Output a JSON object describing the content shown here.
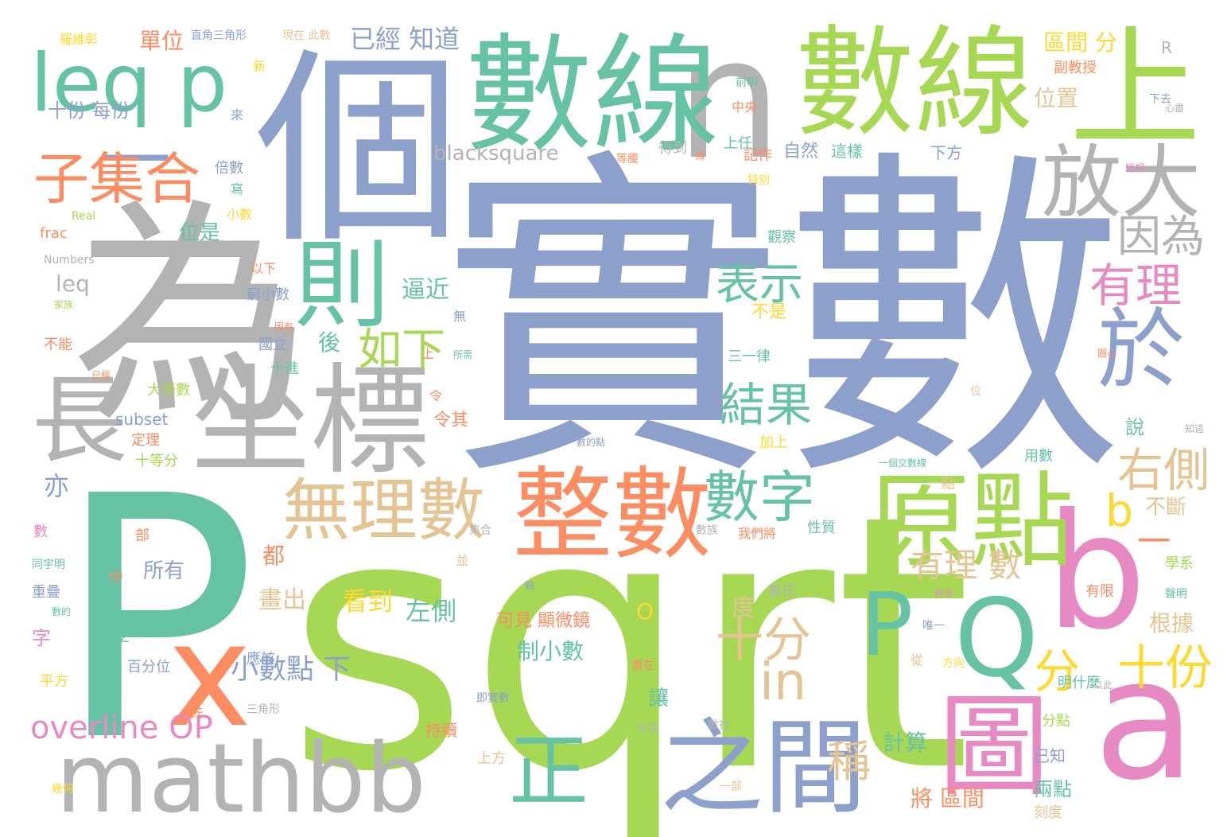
{
  "palette": {
    "blue": "#8da0cb",
    "green": "#66c2a5",
    "lime": "#a6d854",
    "orange": "#fc8d62",
    "pink": "#e78ac3",
    "tan": "#e5c494",
    "gray": "#b3b3b3",
    "yellow": "#ffd92f"
  },
  "words": [
    {
      "text": "實數",
      "color": "blue"
    },
    {
      "text": "sqrt",
      "color": "lime"
    },
    {
      "text": "P",
      "color": "green"
    },
    {
      "text": "為",
      "color": "gray"
    },
    {
      "text": "個",
      "color": "blue"
    },
    {
      "text": "一",
      "color": "blue"
    },
    {
      "text": "n",
      "color": "gray"
    },
    {
      "text": "數線",
      "color": "green"
    },
    {
      "text": "數線",
      "color": "lime"
    },
    {
      "text": "上",
      "color": "lime"
    },
    {
      "text": "x",
      "color": "orange"
    },
    {
      "text": "b",
      "color": "pink"
    },
    {
      "text": "a",
      "color": "pink"
    },
    {
      "text": "坐標",
      "color": "gray"
    },
    {
      "text": "長",
      "color": "gray"
    },
    {
      "text": "mathbb",
      "color": "gray"
    },
    {
      "text": "leq p",
      "color": "green"
    },
    {
      "text": "原點",
      "color": "lime"
    },
    {
      "text": "整數",
      "color": "orange"
    },
    {
      "text": "放大",
      "color": "gray"
    },
    {
      "text": "則",
      "color": "green"
    },
    {
      "text": "於",
      "color": "blue"
    },
    {
      "text": "P",
      "color": "green"
    },
    {
      "text": "Q",
      "color": "green"
    },
    {
      "text": "圖",
      "color": "pink"
    },
    {
      "text": "之間",
      "color": "blue"
    },
    {
      "text": "正",
      "color": "green"
    },
    {
      "text": "無理數",
      "color": "tan"
    },
    {
      "text": "子集合",
      "color": "orange"
    },
    {
      "text": "數字",
      "color": "green"
    },
    {
      "text": "因為",
      "color": "gray"
    },
    {
      "text": "有理",
      "color": "pink"
    },
    {
      "text": "表示",
      "color": "green"
    },
    {
      "text": "如下",
      "color": "lime"
    },
    {
      "text": "結果",
      "color": "green"
    },
    {
      "text": "右側",
      "color": "tan"
    },
    {
      "text": "b",
      "color": "yellow"
    },
    {
      "text": "in",
      "color": "tan"
    },
    {
      "text": "十分",
      "color": "tan"
    },
    {
      "text": "十份",
      "color": "yellow"
    },
    {
      "text": "分",
      "color": "yellow"
    },
    {
      "text": "有理 數",
      "color": "tan"
    },
    {
      "text": "overline OP",
      "color": "pink"
    },
    {
      "text": "稱",
      "color": "tan"
    },
    {
      "text": "小數點 下",
      "color": "blue"
    },
    {
      "text": "blacksquare",
      "color": "gray"
    },
    {
      "text": "十份 每份",
      "color": "blue"
    },
    {
      "text": "單位",
      "color": "orange"
    },
    {
      "text": "已經 知道",
      "color": "blue"
    },
    {
      "text": "區間 分",
      "color": "yellow"
    },
    {
      "text": "位置",
      "color": "tan"
    },
    {
      "text": "逼近",
      "color": "green"
    },
    {
      "text": "位是",
      "color": "green"
    },
    {
      "text": "leq",
      "color": "gray"
    },
    {
      "text": "看到",
      "color": "yellow"
    },
    {
      "text": "左側",
      "color": "green"
    },
    {
      "text": "制小數",
      "color": "green"
    },
    {
      "text": "計算",
      "color": "green"
    },
    {
      "text": "將 區間",
      "color": "orange"
    },
    {
      "text": "兩點",
      "color": "green"
    },
    {
      "text": "所有",
      "color": "blue"
    },
    {
      "text": "畫出",
      "color": "tan"
    },
    {
      "text": "根據",
      "color": "tan"
    },
    {
      "text": "不斷",
      "color": "tan"
    },
    {
      "text": "一",
      "color": "orange"
    },
    {
      "text": "度",
      "color": "tan"
    },
    {
      "text": "O",
      "color": "yellow"
    },
    {
      "text": "亦",
      "color": "blue"
    },
    {
      "text": "後",
      "color": "green"
    },
    {
      "text": "都",
      "color": "orange"
    },
    {
      "text": "說",
      "color": "green"
    },
    {
      "text": "讓",
      "color": "green"
    },
    {
      "text": "字",
      "color": "pink"
    },
    {
      "text": "frac",
      "color": "orange"
    },
    {
      "text": "subset",
      "color": "blue"
    },
    {
      "text": "大學數",
      "color": "lime"
    },
    {
      "text": "十等分",
      "color": "lime"
    },
    {
      "text": "定理",
      "color": "orange"
    },
    {
      "text": "不能",
      "color": "orange"
    },
    {
      "text": "不是",
      "color": "yellow"
    },
    {
      "text": "三一律",
      "color": "green"
    },
    {
      "text": "加上",
      "color": "yellow"
    },
    {
      "text": "令其",
      "color": "orange"
    },
    {
      "text": "國立",
      "color": "blue"
    },
    {
      "text": "十進",
      "color": "green"
    },
    {
      "text": "窮小數",
      "color": "blue"
    },
    {
      "text": "以下",
      "color": "orange"
    },
    {
      "text": "小數",
      "color": "yellow"
    },
    {
      "text": "倍數",
      "color": "blue"
    },
    {
      "text": "自然",
      "color": "blue"
    },
    {
      "text": "得到",
      "color": "gray"
    },
    {
      "text": "上任",
      "color": "green"
    },
    {
      "text": "記作",
      "color": "orange"
    },
    {
      "text": "這樣",
      "color": "green"
    },
    {
      "text": "下方",
      "color": "blue"
    },
    {
      "text": "觀察",
      "color": "green"
    },
    {
      "text": "用數",
      "color": "green"
    },
    {
      "text": "性質",
      "color": "green"
    },
    {
      "text": "一點",
      "color": "tan"
    },
    {
      "text": "我們將",
      "color": "orange"
    },
    {
      "text": "可見 顯微鏡",
      "color": "orange"
    },
    {
      "text": "百分位",
      "color": "blue"
    },
    {
      "text": "應該",
      "color": "blue"
    },
    {
      "text": "平方",
      "color": "yellow"
    },
    {
      "text": "明什麼",
      "color": "green"
    },
    {
      "text": "持續",
      "color": "orange"
    },
    {
      "text": "上方",
      "color": "tan"
    },
    {
      "text": "分點",
      "color": "lime"
    },
    {
      "text": "已知",
      "color": "blue"
    },
    {
      "text": "刻度",
      "color": "tan"
    },
    {
      "text": "有限",
      "color": "orange"
    },
    {
      "text": "學系",
      "color": "lime"
    },
    {
      "text": "副教授",
      "color": "orange"
    },
    {
      "text": "Numbers",
      "color": "gray"
    },
    {
      "text": "Real",
      "color": "lime"
    },
    {
      "text": "R",
      "color": "gray"
    },
    {
      "text": "Z",
      "color": "green"
    },
    {
      "text": "中",
      "color": "orange"
    },
    {
      "text": "部",
      "color": "orange"
    },
    {
      "text": "數",
      "color": "pink"
    },
    {
      "text": "重疊",
      "color": "blue"
    },
    {
      "text": "新",
      "color": "yellow"
    },
    {
      "text": "來",
      "color": "blue"
    },
    {
      "text": "寫",
      "color": "green"
    },
    {
      "text": "無",
      "color": "blue"
    },
    {
      "text": "羅維彰",
      "color": "yellow"
    },
    {
      "text": "直角三角形",
      "color": "blue"
    },
    {
      "text": "現在 此數",
      "color": "tan"
    },
    {
      "text": "畢氏",
      "color": "gray"
    },
    {
      "text": "中央",
      "color": "orange"
    },
    {
      "text": "前明",
      "color": "green"
    },
    {
      "text": "下去",
      "color": "blue"
    },
    {
      "text": "心盡",
      "color": "gray"
    },
    {
      "text": "等腰",
      "color": "orange"
    },
    {
      "text": "特別",
      "color": "yellow"
    },
    {
      "text": "矩相",
      "color": "pink"
    },
    {
      "text": "唯一",
      "color": "blue"
    },
    {
      "text": "方向",
      "color": "yellow"
    },
    {
      "text": "從",
      "color": "tan"
    },
    {
      "text": "許多",
      "color": "pink"
    },
    {
      "text": "聲明",
      "color": "green"
    },
    {
      "text": "以此",
      "color": "gray"
    },
    {
      "text": "知道",
      "color": "gray"
    },
    {
      "text": "圓心",
      "color": "orange"
    },
    {
      "text": "位",
      "color": "tan"
    },
    {
      "text": "半徑",
      "color": "gray"
    },
    {
      "text": "數在",
      "color": "gray"
    },
    {
      "text": "一部",
      "color": "tan"
    },
    {
      "text": "集合",
      "color": "gray"
    },
    {
      "text": "並",
      "color": "tan"
    },
    {
      "text": "三角形",
      "color": "gray"
    },
    {
      "text": "先",
      "color": "orange"
    },
    {
      "text": "幾何",
      "color": "yellow"
    },
    {
      "text": "同宇明",
      "color": "green"
    },
    {
      "text": "數的",
      "color": "green"
    },
    {
      "text": "所需",
      "color": "green"
    },
    {
      "text": "令",
      "color": "orange"
    },
    {
      "text": "上",
      "color": "orange"
    },
    {
      "text": "點",
      "color": "blue"
    },
    {
      "text": "數的點",
      "color": "blue"
    },
    {
      "text": "一個交數線",
      "color": "green"
    },
    {
      "text": "實在",
      "color": "orange"
    },
    {
      "text": "數族",
      "color": "gray"
    },
    {
      "text": "線",
      "color": "orange"
    },
    {
      "text": "因有",
      "color": "orange"
    },
    {
      "text": "家族",
      "color": "lime"
    },
    {
      "text": "已經",
      "color": "orange"
    },
    {
      "text": "即實數",
      "color": "blue"
    }
  ]
}
